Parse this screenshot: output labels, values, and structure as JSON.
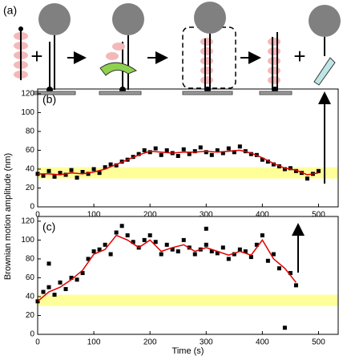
{
  "diagram": {
    "label": "(a)",
    "plus_1": "+",
    "plus_2": "+"
  },
  "ylabel": "Brownian motion amplitude (nm)",
  "chart_data": [
    {
      "type": "scatter",
      "label": "(b)",
      "xlim": [
        0,
        535
      ],
      "ylim": [
        0,
        125
      ],
      "xticks": [
        0,
        100,
        200,
        300,
        400,
        500
      ],
      "yticks": [
        0,
        20,
        40,
        60,
        80,
        100,
        120
      ],
      "band": [
        30,
        42
      ],
      "band_color": "#ffff99",
      "series": [
        {
          "style": "square",
          "color": "#000000",
          "x": [
            0,
            10,
            20,
            30,
            40,
            50,
            60,
            70,
            80,
            90,
            100,
            110,
            120,
            130,
            140,
            150,
            160,
            170,
            180,
            190,
            200,
            210,
            220,
            230,
            240,
            250,
            260,
            270,
            280,
            290,
            300,
            310,
            320,
            330,
            340,
            350,
            360,
            370,
            380,
            390,
            400,
            410,
            420,
            430,
            440,
            450,
            460,
            470,
            480,
            490,
            500
          ],
          "values": [
            35,
            33,
            38,
            32,
            36,
            34,
            39,
            31,
            37,
            35,
            40,
            36,
            42,
            45,
            44,
            48,
            50,
            53,
            56,
            60,
            58,
            62,
            55,
            60,
            57,
            54,
            61,
            56,
            59,
            63,
            58,
            55,
            60,
            57,
            62,
            58,
            64,
            59,
            56,
            55,
            50,
            48,
            45,
            43,
            40,
            41,
            38,
            36,
            30,
            35,
            38
          ]
        },
        {
          "style": "line",
          "color": "#e00000",
          "x": [
            0,
            20,
            40,
            60,
            80,
            100,
            120,
            140,
            160,
            180,
            200,
            220,
            240,
            260,
            280,
            300,
            320,
            340,
            360,
            380,
            400,
            420,
            440,
            460,
            480,
            500
          ],
          "values": [
            35,
            35,
            34,
            36,
            35,
            37,
            40,
            45,
            50,
            55,
            59,
            58,
            57,
            58,
            58,
            59,
            58,
            59,
            60,
            57,
            52,
            46,
            41,
            39,
            34,
            36
          ]
        }
      ]
    },
    {
      "type": "scatter",
      "label": "(c)",
      "xlabel": "Time (s)",
      "xlim": [
        0,
        535
      ],
      "ylim": [
        0,
        125
      ],
      "xticks": [
        0,
        100,
        200,
        300,
        400,
        500
      ],
      "yticks": [
        0,
        20,
        40,
        60,
        80,
        100,
        120
      ],
      "band": [
        30,
        42
      ],
      "band_color": "#ffff99",
      "series": [
        {
          "style": "square",
          "color": "#000000",
          "x": [
            0,
            10,
            20,
            30,
            40,
            50,
            60,
            70,
            80,
            90,
            100,
            110,
            120,
            130,
            140,
            150,
            160,
            170,
            180,
            190,
            200,
            210,
            220,
            230,
            240,
            250,
            260,
            270,
            280,
            290,
            300,
            310,
            320,
            330,
            340,
            350,
            360,
            370,
            380,
            390,
            400,
            410,
            420,
            430,
            440,
            450,
            460,
            20,
            300
          ],
          "values": [
            35,
            45,
            50,
            42,
            55,
            48,
            60,
            58,
            65,
            80,
            88,
            90,
            95,
            85,
            108,
            115,
            105,
            98,
            92,
            100,
            105,
            98,
            85,
            95,
            90,
            88,
            100,
            92,
            85,
            90,
            95,
            88,
            86,
            92,
            80,
            85,
            90,
            88,
            82,
            95,
            105,
            78,
            85,
            70,
            7,
            65,
            52,
            75,
            112
          ]
        },
        {
          "style": "line",
          "color": "#e00000",
          "x": [
            0,
            20,
            40,
            60,
            80,
            100,
            120,
            140,
            160,
            180,
            200,
            220,
            240,
            260,
            280,
            300,
            320,
            340,
            360,
            380,
            400,
            420,
            440,
            460
          ],
          "values": [
            35,
            45,
            50,
            58,
            68,
            85,
            90,
            105,
            100,
            92,
            100,
            88,
            92,
            95,
            88,
            92,
            88,
            84,
            88,
            84,
            100,
            80,
            70,
            55
          ]
        }
      ]
    }
  ]
}
